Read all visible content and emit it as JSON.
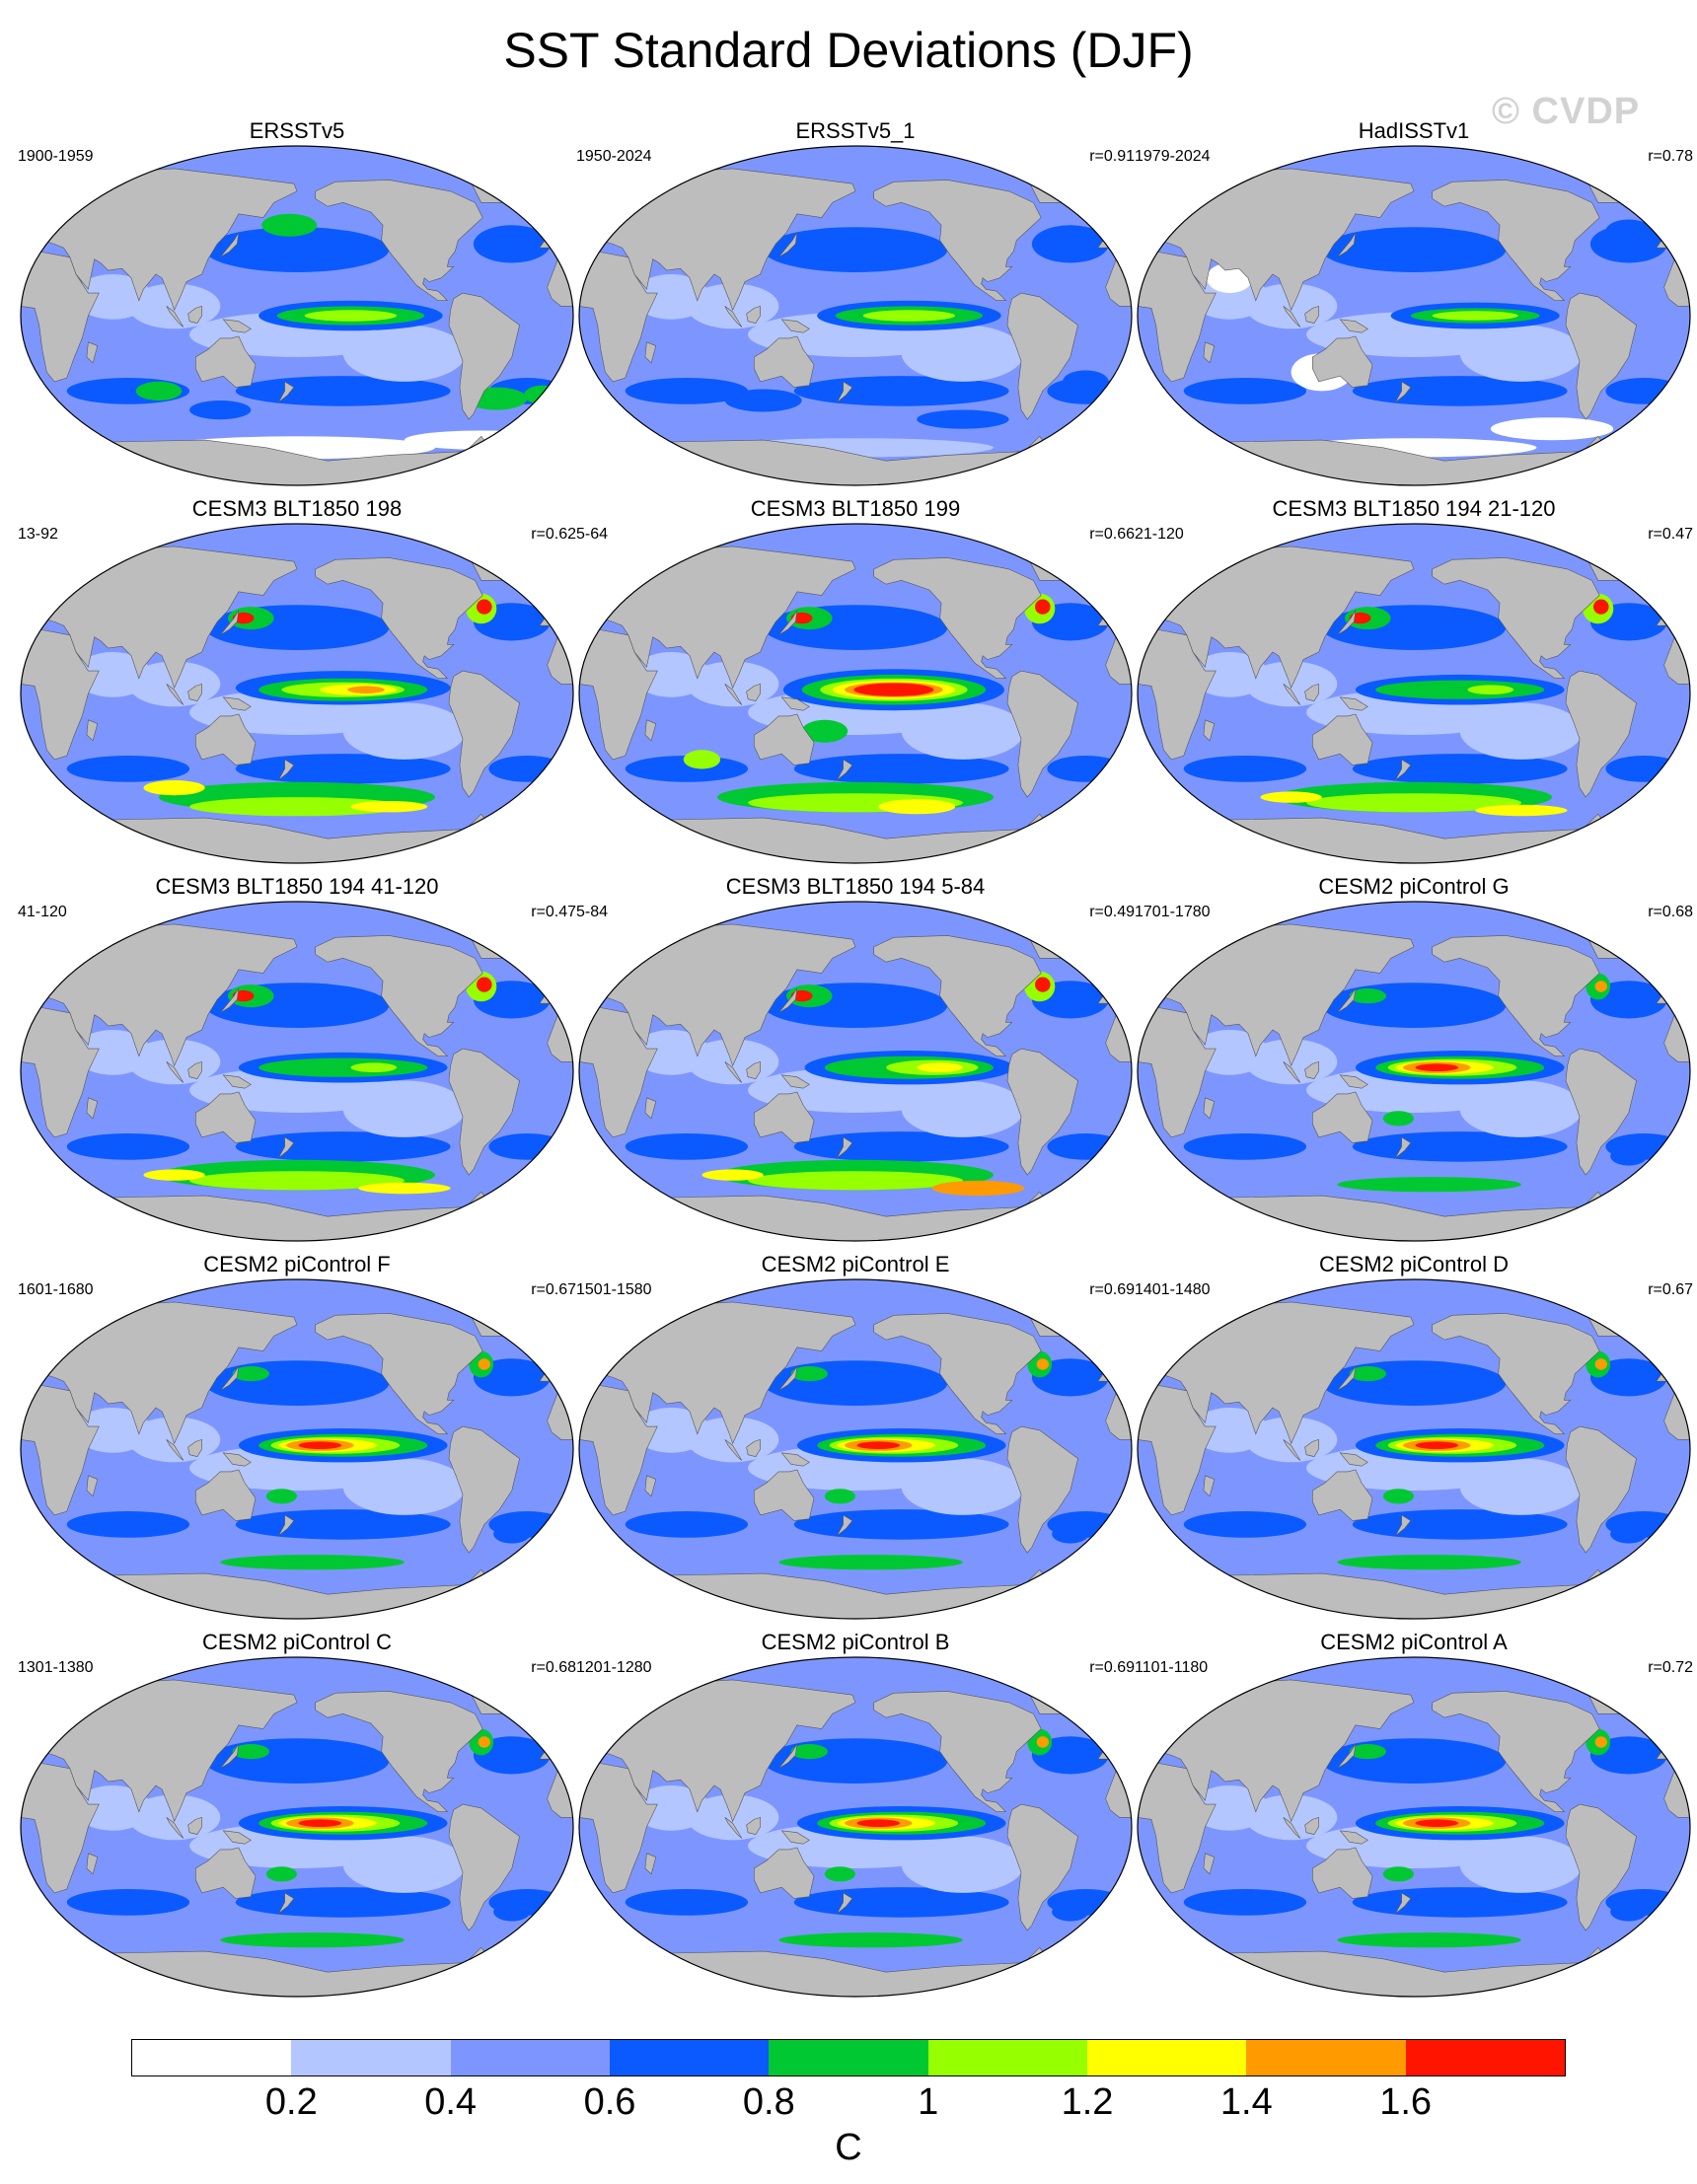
{
  "figure": {
    "title": "SST Standard Deviations (DJF)",
    "watermark": "© CVDP",
    "unit": "C"
  },
  "colorbar": {
    "colors": [
      "#ffffff",
      "#b4c6ff",
      "#7d96ff",
      "#0a5aff",
      "#00c832",
      "#96ff00",
      "#ffff00",
      "#ff9b00",
      "#ff1400"
    ],
    "labels": [
      "0.2",
      "0.4",
      "0.6",
      "0.8",
      "1",
      "1.2",
      "1.4",
      "1.6"
    ],
    "bounds": [
      0.2,
      0.4,
      0.6,
      0.8,
      1.0,
      1.2,
      1.4,
      1.6
    ]
  },
  "land_color": "#bdbdbd",
  "panels": [
    {
      "title": "ERSSTv5",
      "period": "1900-1959",
      "r": "",
      "kind": "obs1"
    },
    {
      "title": "ERSSTv5_1",
      "period": "1950-2024",
      "r": "r=0.91",
      "kind": "obs2"
    },
    {
      "title": "HadISSTv1",
      "period": "1979-2024",
      "r": "r=0.78",
      "kind": "obs3"
    },
    {
      "title": "CESM3 BLT1850 198",
      "period": "13-92",
      "r": "r=0.62",
      "kind": "cesm3a"
    },
    {
      "title": "CESM3 BLT1850 199",
      "period": "5-64",
      "r": "r=0.66",
      "kind": "cesm3b"
    },
    {
      "title": "CESM3 BLT1850 194 21-120",
      "period": "21-120",
      "r": "r=0.47",
      "kind": "cesm3c"
    },
    {
      "title": "CESM3 BLT1850 194 41-120",
      "period": "41-120",
      "r": "r=0.47",
      "kind": "cesm3c"
    },
    {
      "title": "CESM3 BLT1850 194 5-84",
      "period": "5-84",
      "r": "r=0.49",
      "kind": "cesm3d"
    },
    {
      "title": "CESM2 piControl G",
      "period": "1701-1780",
      "r": "r=0.68",
      "kind": "cesm2"
    },
    {
      "title": "CESM2 piControl F",
      "period": "1601-1680",
      "r": "r=0.67",
      "kind": "cesm2"
    },
    {
      "title": "CESM2 piControl E",
      "period": "1501-1580",
      "r": "r=0.69",
      "kind": "cesm2"
    },
    {
      "title": "CESM2 piControl D",
      "period": "1401-1480",
      "r": "r=0.67",
      "kind": "cesm2"
    },
    {
      "title": "CESM2 piControl C",
      "period": "1301-1380",
      "r": "r=0.68",
      "kind": "cesm2"
    },
    {
      "title": "CESM2 piControl B",
      "period": "1201-1280",
      "r": "r=0.69",
      "kind": "cesm2"
    },
    {
      "title": "CESM2 piControl A",
      "period": "1101-1180",
      "r": "r=0.72",
      "kind": "cesm2"
    }
  ]
}
